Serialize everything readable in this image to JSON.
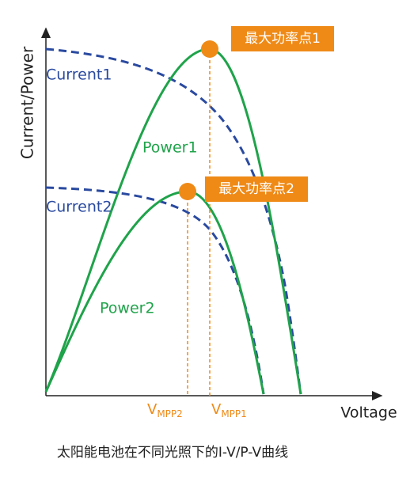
{
  "axes": {
    "y_label": "Current/Power",
    "x_label": "Voltage"
  },
  "curves": {
    "current1": "Current1",
    "power1": "Power1",
    "current2": "Current2",
    "power2": "Power2"
  },
  "mpp_boxes": [
    "最大功率点1",
    "最大功率点2"
  ],
  "vmpp": [
    {
      "main": "V",
      "sub": "MPP2"
    },
    {
      "main": "V",
      "sub": "MPP1"
    }
  ],
  "caption": "太阳能电池在不同光照下的I-V/P-V曲线"
}
